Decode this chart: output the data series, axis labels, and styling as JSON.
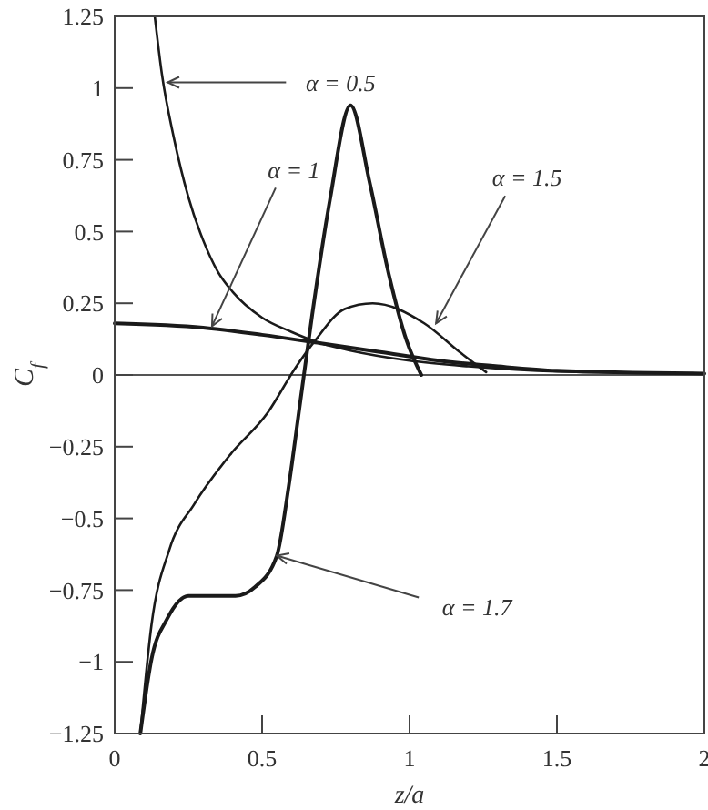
{
  "chart_data": {
    "type": "line",
    "xlabel": "z/a",
    "ylabel": "C$_{f}$",
    "xlim": [
      0,
      2
    ],
    "ylim": [
      -1.25,
      1.25
    ],
    "xticks": [
      0,
      0.5,
      1,
      1.5,
      2
    ],
    "yticks": [
      {
        "value": -1.25,
        "label": "−1.25"
      },
      {
        "value": -1,
        "label": "−1"
      },
      {
        "value": -0.75,
        "label": "−0.75"
      },
      {
        "value": -0.5,
        "label": "−0.5"
      },
      {
        "value": -0.25,
        "label": "−0.25"
      },
      0,
      0.25,
      0.5,
      0.75,
      1,
      1.25
    ],
    "grid": false,
    "marker": "none",
    "line_style": "solid",
    "ref_lines": [
      {
        "axis": "y",
        "value": 0,
        "color": "#555555"
      }
    ],
    "series": [
      {
        "color": "#1a1a1a",
        "x": [
          0.136,
          0.16,
          0.2,
          0.25,
          0.3,
          0.35,
          0.4,
          0.5,
          0.6,
          0.7,
          0.8,
          1,
          1.2,
          1.5,
          2
        ],
        "values": [
          1.25,
          1.05,
          0.83,
          0.62,
          0.47,
          0.36,
          0.29,
          0.2,
          0.15,
          0.11,
          0.085,
          0.05,
          0.03,
          0.012,
          0.005
        ]
      },
      {
        "color": "#1a1a1a",
        "x": [
          0,
          0.3,
          0.5,
          0.7,
          0.9,
          1.1,
          1.3,
          1.5,
          2
        ],
        "values": [
          0.18,
          0.165,
          0.14,
          0.11,
          0.08,
          0.05,
          0.03,
          0.015,
          0.005
        ]
      },
      {
        "color": "#1a1a1a",
        "x": [
          0.087,
          0.125,
          0.185,
          0.27,
          0.39,
          0.52,
          0.61,
          0.68,
          0.78,
          0.875,
          1.05,
          1.17,
          1.26
        ],
        "values": [
          -1.25,
          -0.87,
          -0.61,
          -0.45,
          -0.28,
          -0.13,
          0.02,
          0.12,
          0.23,
          0.25,
          0.18,
          0.08,
          0.01
        ]
      },
      {
        "color": "#1a1a1a",
        "x": [
          0.087,
          0.125,
          0.178,
          0.25,
          0.41,
          0.475,
          0.55,
          0.59,
          0.63,
          0.67,
          0.73,
          0.8,
          0.865,
          0.93,
          0.99,
          1.04
        ],
        "values": [
          -1.25,
          -0.99,
          -0.85,
          -0.77,
          -0.77,
          -0.74,
          -0.63,
          -0.39,
          -0.09,
          0.21,
          0.61,
          0.94,
          0.67,
          0.35,
          0.12,
          0
        ]
      }
    ],
    "annotations": [
      {
        "text": "α = 0.5",
        "x": 0.18,
        "y": 1.02
      },
      {
        "text": "α = 1",
        "x": 0.33,
        "y": 0.17
      },
      {
        "text": "α = 1.5",
        "x": 1.09,
        "y": 0.18
      },
      {
        "text": "α = 1.7",
        "x": 0.55,
        "y": -0.63
      }
    ]
  }
}
